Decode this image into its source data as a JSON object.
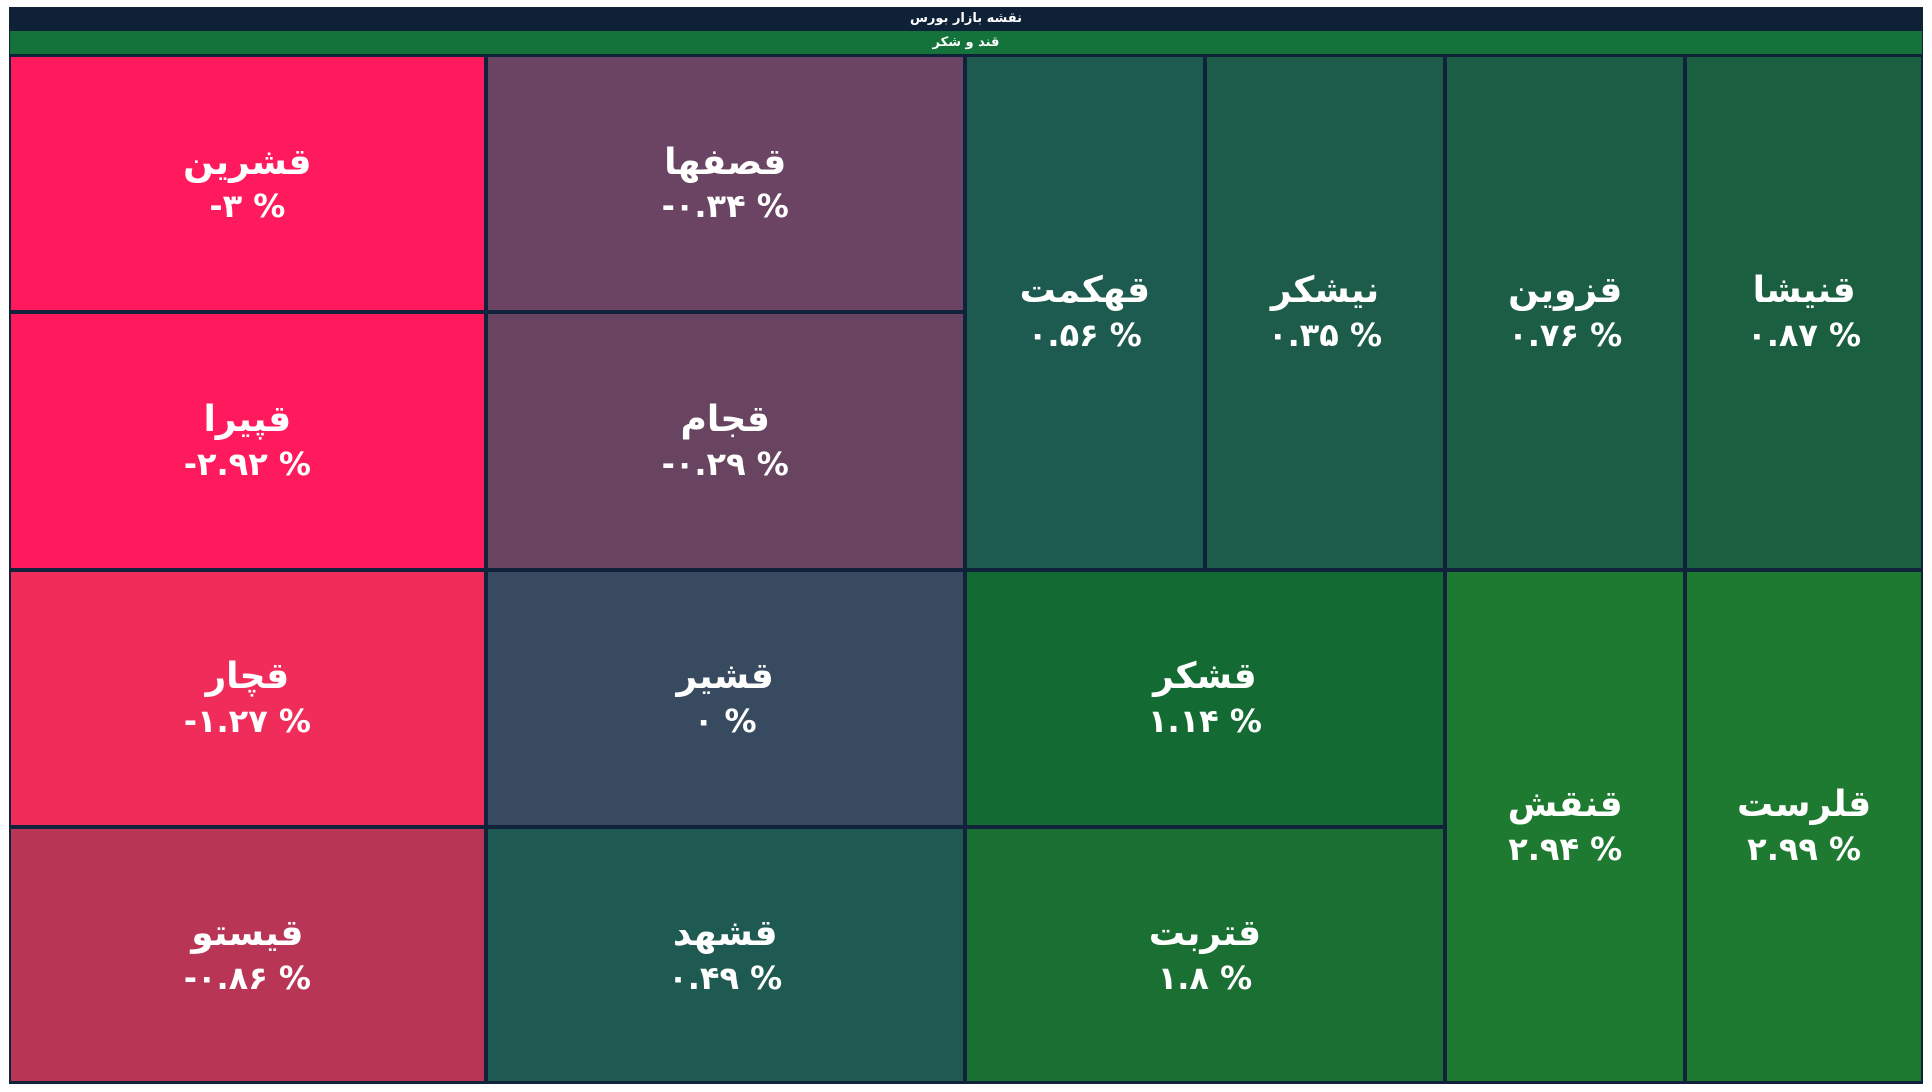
{
  "header": {
    "title": "نقشه بازار بورس",
    "subtitle": "قند و شکر"
  },
  "tiles": [
    {
      "symbol": "قشرین",
      "change": "-۳ %"
    },
    {
      "symbol": "قپیرا",
      "change": "-۲.۹۲ %"
    },
    {
      "symbol": "قچار",
      "change": "-۱.۲۷ %"
    },
    {
      "symbol": "قیستو",
      "change": "-۰.۸۶ %"
    },
    {
      "symbol": "قصفها",
      "change": "-۰.۳۴ %"
    },
    {
      "symbol": "قجام",
      "change": "-۰.۲۹ %"
    },
    {
      "symbol": "قشیر",
      "change": "۰ %"
    },
    {
      "symbol": "قشهد",
      "change": "۰.۴۹ %"
    },
    {
      "symbol": "قهکمت",
      "change": "۰.۵۶ %"
    },
    {
      "symbol": "نیشکر",
      "change": "۰.۳۵ %"
    },
    {
      "symbol": "قزوین",
      "change": "۰.۷۶ %"
    },
    {
      "symbol": "قنیشا",
      "change": "۰.۸۷ %"
    },
    {
      "symbol": "قشکر",
      "change": "۱.۱۴ %"
    },
    {
      "symbol": "قتربت",
      "change": "۱.۸ %"
    },
    {
      "symbol": "قنقش",
      "change": "۲.۹۴ %"
    },
    {
      "symbol": "قلرست",
      "change": "۲.۹۹ %"
    }
  ]
}
